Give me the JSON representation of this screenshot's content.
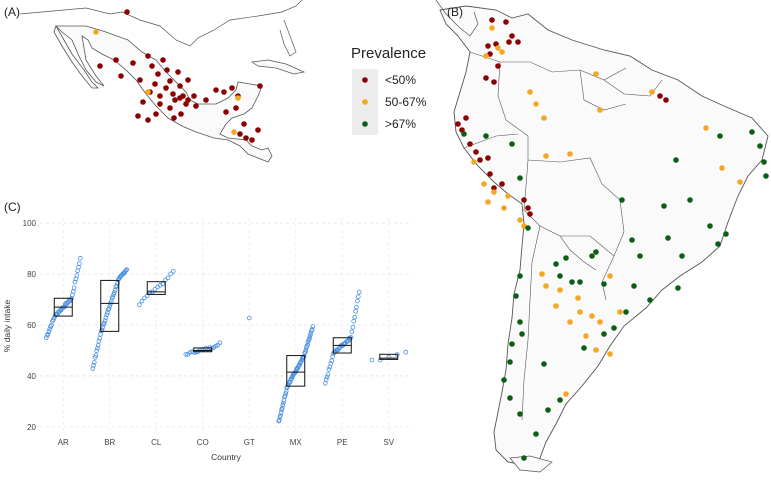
{
  "panels": {
    "a": "(A)",
    "b": "(B)",
    "c": "(C)"
  },
  "legend": {
    "title": "Prevalence",
    "items": [
      {
        "label": "<50%",
        "color": "#8b0000"
      },
      {
        "label": "50-67%",
        "color": "#f5a623"
      },
      {
        "label": ">67%",
        "color": "#0b5e14"
      }
    ]
  },
  "maps": {
    "a_region": "Mexico and Central America",
    "b_region": "South America",
    "point_counts": {
      "a": {
        "<50%": 48,
        "50-67%": 4
      },
      "b": {
        "<50%": 26,
        "50-67%": 38,
        ">67%": 50
      }
    }
  },
  "chart_data": {
    "type": "box",
    "title": "",
    "xlabel": "Country",
    "ylabel": "% daily intake",
    "categories": [
      "AR",
      "BR",
      "CL",
      "CO",
      "GT",
      "MX",
      "PE",
      "SV"
    ],
    "ylim": [
      18,
      102
    ],
    "yticks": [
      20,
      40,
      60,
      80,
      100
    ],
    "grid": true,
    "point_color": "#4a90e2",
    "boxes": [
      {
        "country": "AR",
        "q1": 63.5,
        "median": 67,
        "q3": 70.5,
        "min": 55,
        "max": 86
      },
      {
        "country": "BR",
        "q1": 57.5,
        "median": 68.5,
        "q3": 77.5,
        "min": 43,
        "max": 82
      },
      {
        "country": "CL",
        "q1": 72,
        "median": 73,
        "q3": 77,
        "min": 68,
        "max": 81
      },
      {
        "country": "CO",
        "q1": 49.5,
        "median": 50,
        "q3": 51,
        "min": 48.5,
        "max": 53
      },
      {
        "country": "GT",
        "q1": null,
        "median": null,
        "q3": null,
        "min": 62.5,
        "max": 62.5
      },
      {
        "country": "MX",
        "q1": 36,
        "median": 41.5,
        "q3": 48,
        "min": 22,
        "max": 59
      },
      {
        "country": "PE",
        "q1": 49,
        "median": 52,
        "q3": 55,
        "min": 37,
        "max": 73
      },
      {
        "country": "SV",
        "q1": 46.5,
        "median": 47,
        "q3": 48.5,
        "min": 46,
        "max": 49
      }
    ]
  }
}
